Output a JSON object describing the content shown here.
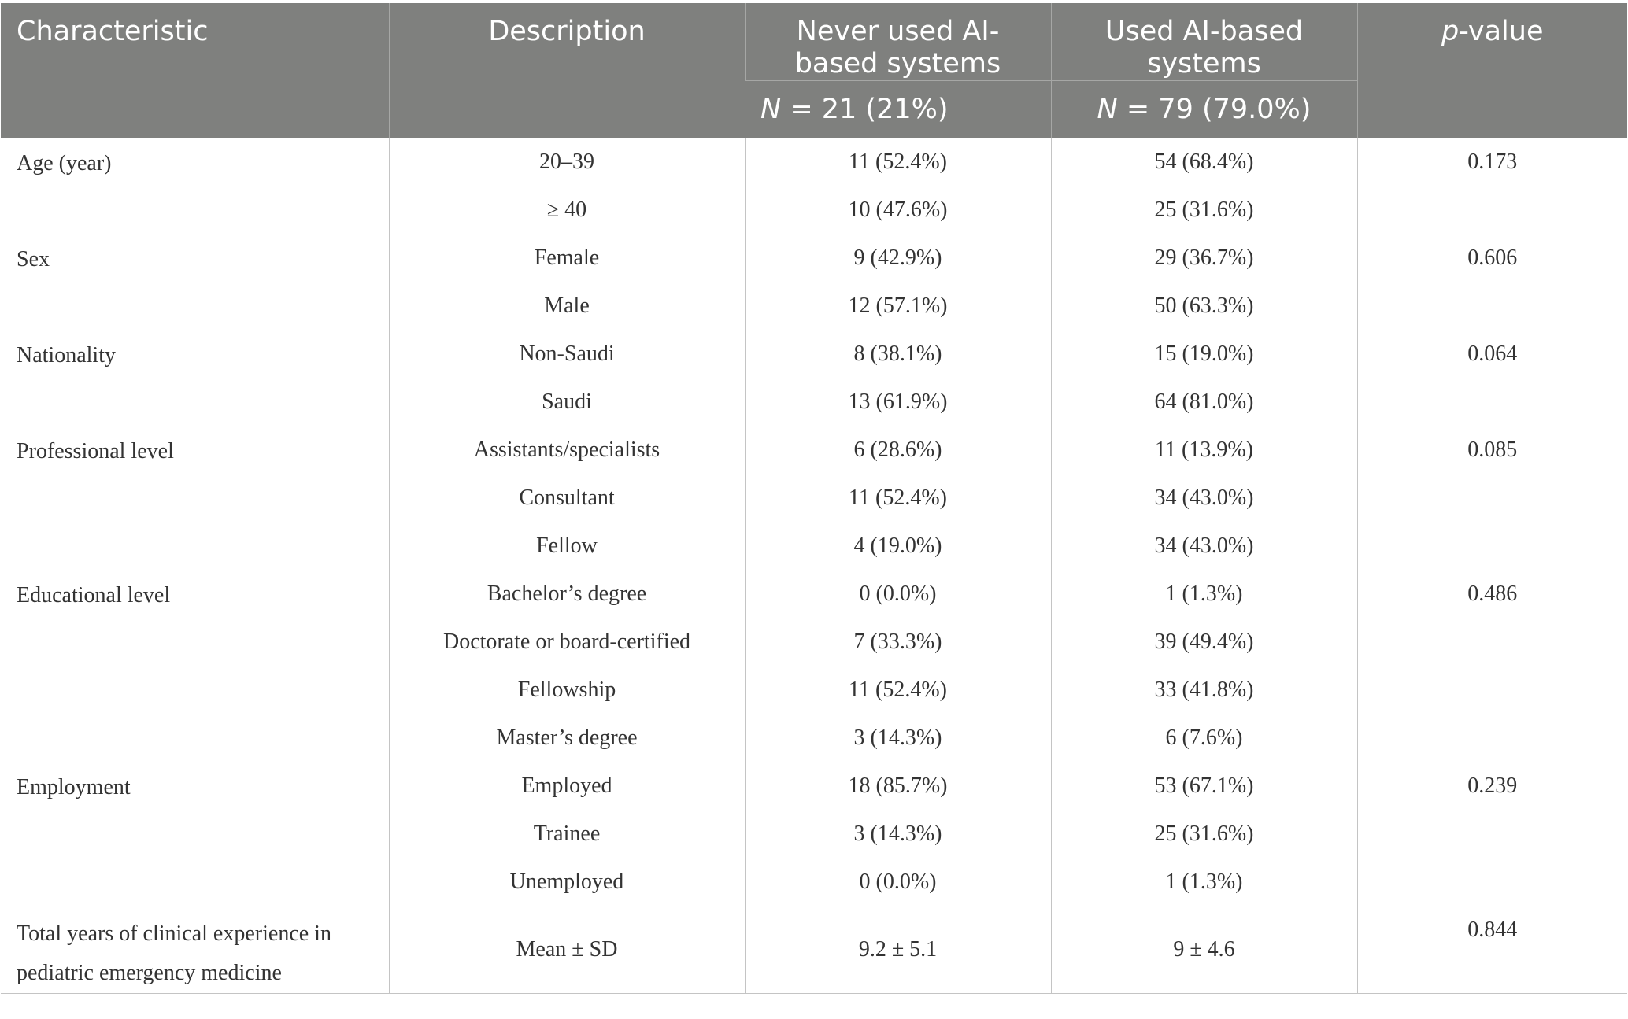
{
  "header": {
    "characteristic": "Characteristic",
    "description": "Description",
    "never_line1": "Never used AI-",
    "never_line2": "based systems",
    "used_line1": "Used AI-based",
    "used_line2": "systems",
    "pvalue_italic": "p",
    "pvalue_rest": "-value",
    "never_n_label": "N",
    "never_n_value": " = 21 (21%)",
    "used_n_label": "N",
    "used_n_value": " = 79 (79.0%)"
  },
  "groups": [
    {
      "characteristic": "Age (year)",
      "p_value": "0.173",
      "rows": [
        {
          "description": "20–39",
          "never": "11 (52.4%)",
          "used": "54 (68.4%)"
        },
        {
          "description": "≥ 40",
          "never": "10 (47.6%)",
          "used": "25 (31.6%)"
        }
      ]
    },
    {
      "characteristic": "Sex",
      "p_value": "0.606",
      "rows": [
        {
          "description": "Female",
          "never": "9 (42.9%)",
          "used": "29 (36.7%)"
        },
        {
          "description": "Male",
          "never": "12 (57.1%)",
          "used": "50 (63.3%)"
        }
      ]
    },
    {
      "characteristic": "Nationality",
      "p_value": "0.064",
      "rows": [
        {
          "description": "Non-Saudi",
          "never": "8 (38.1%)",
          "used": "15 (19.0%)"
        },
        {
          "description": "Saudi",
          "never": "13 (61.9%)",
          "used": "64 (81.0%)"
        }
      ]
    },
    {
      "characteristic": "Professional level",
      "p_value": "0.085",
      "rows": [
        {
          "description": "Assistants/specialists",
          "never": "6 (28.6%)",
          "used": "11 (13.9%)"
        },
        {
          "description": "Consultant",
          "never": "11 (52.4%)",
          "used": "34 (43.0%)"
        },
        {
          "description": "Fellow",
          "never": "4 (19.0%)",
          "used": "34 (43.0%)"
        }
      ]
    },
    {
      "characteristic": "Educational level",
      "p_value": "0.486",
      "rows": [
        {
          "description": "Bachelor’s degree",
          "never": "0 (0.0%)",
          "used": "1 (1.3%)"
        },
        {
          "description": "Doctorate or board-certified",
          "never": "7 (33.3%)",
          "used": "39 (49.4%)"
        },
        {
          "description": "Fellowship",
          "never": "11 (52.4%)",
          "used": "33 (41.8%)"
        },
        {
          "description": "Master’s degree",
          "never": "3 (14.3%)",
          "used": "6 (7.6%)"
        }
      ]
    },
    {
      "characteristic": "Employment",
      "p_value": "0.239",
      "rows": [
        {
          "description": "Employed",
          "never": "18 (85.7%)",
          "used": "53 (67.1%)"
        },
        {
          "description": "Trainee",
          "never": "3 (14.3%)",
          "used": "25 (31.6%)"
        },
        {
          "description": "Unemployed",
          "never": "0 (0.0%)",
          "used": "1 (1.3%)"
        }
      ]
    }
  ],
  "last": {
    "char_line1": "Total years of clinical experience in",
    "char_line2": "pediatric emergency medicine",
    "description": "Mean ± SD",
    "never": "9.2 ± 5.1",
    "used": "9 ± 4.6",
    "p_value": "0.844"
  }
}
